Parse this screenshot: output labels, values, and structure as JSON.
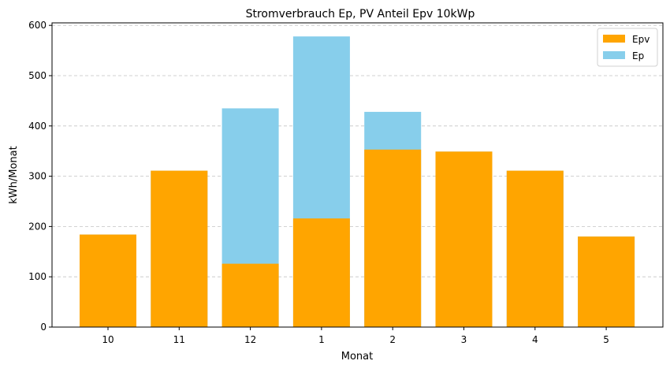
{
  "chart_data": {
    "type": "bar",
    "stacking": "overlay",
    "title": "Stromverbrauch Ep, PV Anteil Epv 10kWp",
    "xlabel": "Monat",
    "ylabel": "kWh/Monat",
    "categories": [
      "10",
      "11",
      "12",
      "1",
      "2",
      "3",
      "4",
      "5"
    ],
    "series": [
      {
        "name": "Epv",
        "color": "#FFA500",
        "values": [
          184,
          311,
          126,
          216,
          353,
          349,
          311,
          180
        ]
      },
      {
        "name": "Ep",
        "color": "#87CEEB",
        "values": [
          184,
          311,
          435,
          578,
          428,
          349,
          311,
          180
        ]
      }
    ],
    "ylim": [
      0,
      605
    ],
    "yticks": [
      0,
      100,
      200,
      300,
      400,
      500,
      600
    ],
    "grid": {
      "y": true,
      "x": false,
      "style": "dashed"
    },
    "legend": {
      "placement": "top-right"
    }
  }
}
